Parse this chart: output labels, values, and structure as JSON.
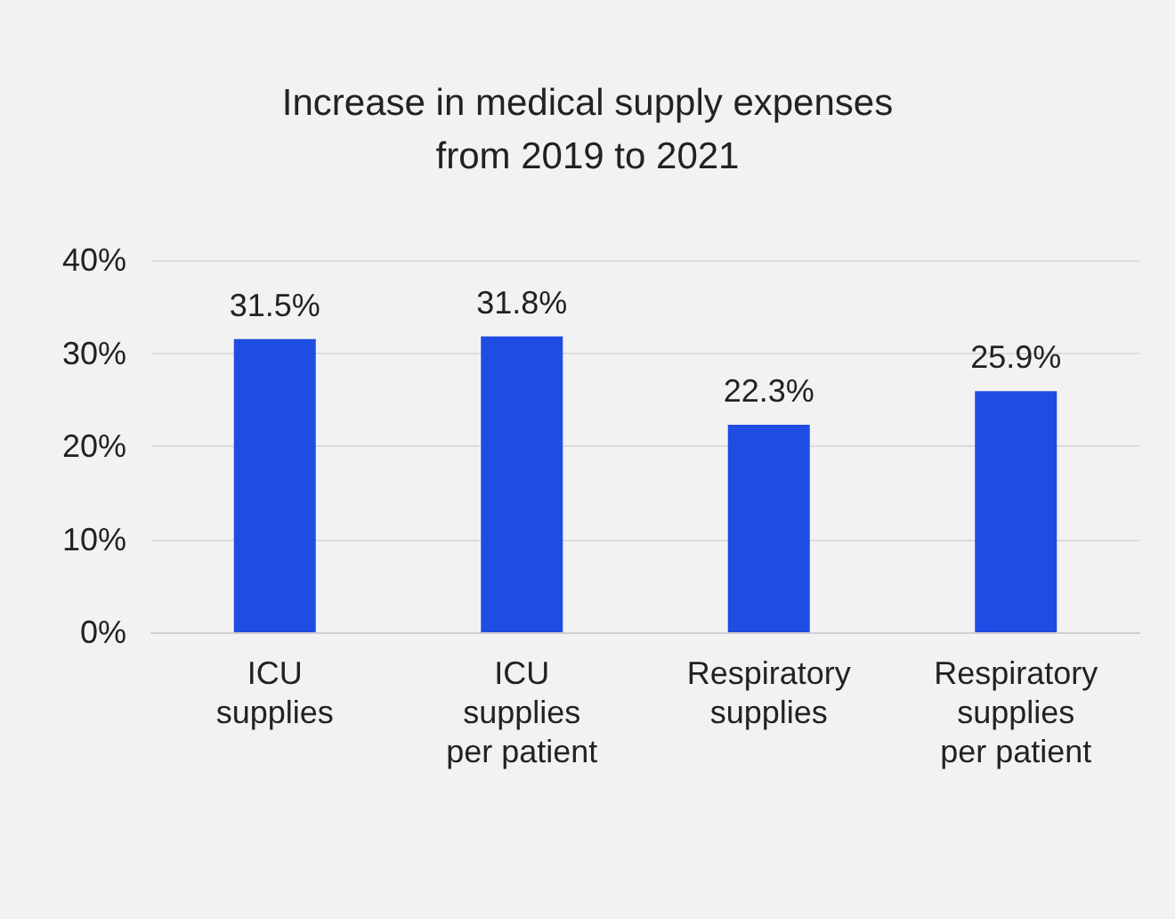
{
  "chart_data": {
    "type": "bar",
    "title": "Increase in medical supply expenses\nfrom 2019 to 2021",
    "categories": [
      "ICU\nsupplies",
      "ICU\nsupplies\nper patient",
      "Respiratory\nsupplies",
      "Respiratory\nsupplies\nper patient"
    ],
    "values": [
      31.5,
      31.8,
      22.3,
      25.9
    ],
    "color": "#1f4de4",
    "value_labels": [
      "31.5%",
      "31.8%",
      "22.3%",
      "25.9%"
    ],
    "ylim": [
      0,
      40
    ],
    "yticks": [
      {
        "value": 0,
        "label": "0%"
      },
      {
        "value": 10,
        "label": "10%"
      },
      {
        "value": 20,
        "label": "20%"
      },
      {
        "value": 30,
        "label": "30%"
      },
      {
        "value": 40,
        "label": "40%"
      }
    ],
    "grid": "y"
  }
}
